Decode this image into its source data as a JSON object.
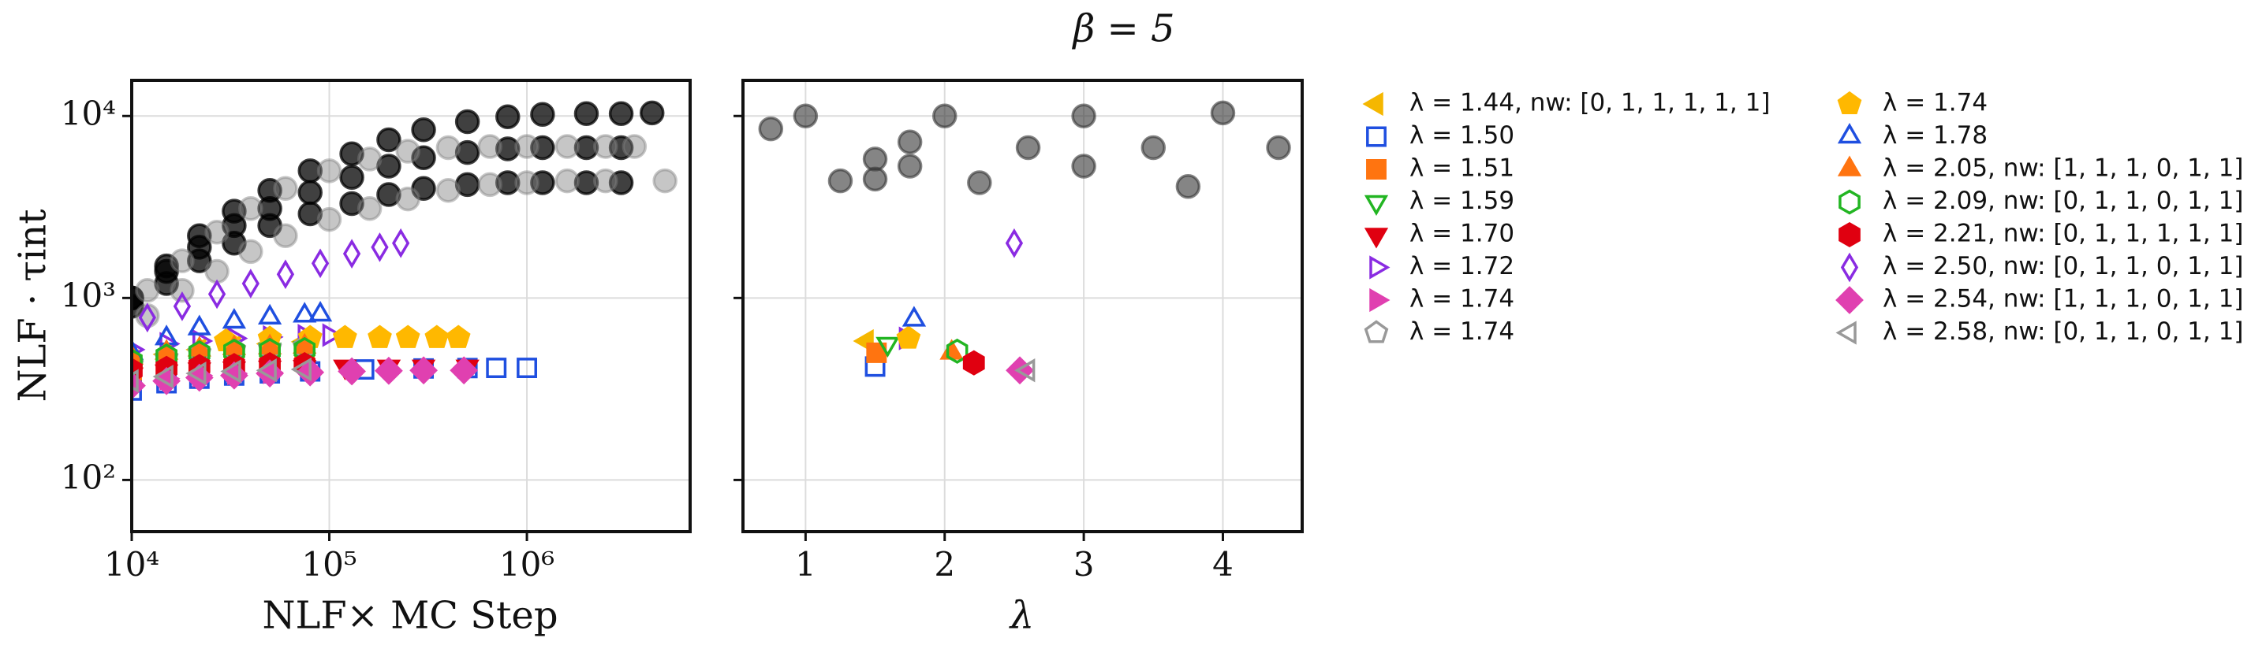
{
  "chart_data": [
    {
      "type": "scatter",
      "y_label": "NLF · τint",
      "x_label": "NLF× MC Step",
      "xlog": true,
      "ylog": true,
      "grid": true,
      "xlim": [
        10000,
        6700000
      ],
      "ylim": [
        52,
        15700
      ],
      "xticks": [
        {
          "value": 10000,
          "label": "10⁴"
        },
        {
          "value": 100000,
          "label": "10⁵"
        },
        {
          "value": 1000000,
          "label": "10⁶"
        }
      ],
      "yticks": [
        {
          "value": 100,
          "label": "10²"
        },
        {
          "value": 1000,
          "label": "10³"
        },
        {
          "value": 10000,
          "label": "10⁴"
        }
      ],
      "legend": "outside right",
      "legend_columns": 2,
      "series": [
        {
          "color": "#000000",
          "alpha": 0.75,
          "marker": "circle",
          "fill": true,
          "x": [
            10000,
            15000,
            22000,
            33000,
            50000,
            80000,
            130000,
            200000,
            300000,
            500000,
            800000,
            1200000,
            2000000,
            3000000,
            4300000
          ],
          "values": [
            1000,
            1500,
            2200,
            3000,
            3900,
            5000,
            6200,
            7400,
            8400,
            9300,
            9900,
            10200,
            10300,
            10300,
            10400
          ]
        },
        {
          "color": "#000000",
          "alpha": 0.75,
          "marker": "circle",
          "fill": true,
          "x": [
            10000,
            15000,
            22000,
            33000,
            50000,
            80000,
            130000,
            200000,
            300000,
            500000,
            800000,
            1200000,
            2000000,
            3000000
          ],
          "values": [
            1000,
            1400,
            1900,
            2500,
            3100,
            3800,
            4600,
            5300,
            5900,
            6300,
            6600,
            6700,
            6700,
            6700
          ]
        },
        {
          "color": "#000000",
          "alpha": 0.75,
          "marker": "circle",
          "fill": true,
          "x": [
            10000,
            15000,
            22000,
            33000,
            50000,
            80000,
            130000,
            200000,
            300000,
            500000,
            800000,
            1200000,
            2000000,
            3000000
          ],
          "values": [
            900,
            1200,
            1600,
            2000,
            2500,
            2900,
            3300,
            3700,
            4000,
            4200,
            4300,
            4300,
            4300,
            4300
          ]
        },
        {
          "color": "#808080",
          "alpha": 0.45,
          "marker": "circle",
          "fill": true,
          "x": [
            12000,
            18000,
            27000,
            40000,
            60000,
            100000,
            160000,
            250000,
            400000,
            650000,
            1000000,
            1600000,
            2500000,
            3500000
          ],
          "values": [
            1100,
            1600,
            2300,
            3100,
            4000,
            5000,
            5800,
            6400,
            6700,
            6800,
            6800,
            6800,
            6800,
            6800
          ]
        },
        {
          "color": "#808080",
          "alpha": 0.45,
          "marker": "circle",
          "fill": true,
          "x": [
            12000,
            18000,
            27000,
            40000,
            60000,
            100000,
            160000,
            250000,
            400000,
            650000,
            1000000,
            1600000,
            2500000,
            5000000
          ],
          "values": [
            800,
            1100,
            1400,
            1800,
            2200,
            2700,
            3100,
            3500,
            3900,
            4200,
            4300,
            4400,
            4400,
            4400
          ]
        },
        {
          "name": "λ = 1.44, nw: [0, 1, 1, 1, 1, 1]",
          "color": "#f5b700",
          "marker": "tri_left",
          "fill": true,
          "x": [
            10000,
            15000,
            22000,
            33000,
            50000,
            75000
          ],
          "values": [
            450,
            490,
            520,
            540,
            560,
            575
          ]
        },
        {
          "name": "λ = 1.50",
          "color": "#1f4fe0",
          "marker": "square",
          "fill": false,
          "x": [
            10000,
            15000,
            22000,
            33000,
            50000,
            80000,
            150000,
            300000,
            500000,
            700000,
            1000000
          ],
          "values": [
            310,
            340,
            360,
            375,
            385,
            395,
            405,
            410,
            412,
            413,
            413
          ]
        },
        {
          "name": "λ = 1.51",
          "color": "#ff7410",
          "marker": "square",
          "fill": true,
          "x": [
            10000,
            15000,
            22000,
            33000,
            50000,
            75000
          ],
          "values": [
            400,
            430,
            460,
            480,
            495,
            500
          ]
        },
        {
          "name": "λ = 1.59",
          "color": "#22b522",
          "marker": "tri_down",
          "fill": false,
          "x": [
            10000,
            15000,
            22000,
            33000,
            50000,
            75000
          ],
          "values": [
            420,
            450,
            480,
            500,
            520,
            530
          ]
        },
        {
          "name": "λ = 1.70",
          "color": "#e00010",
          "marker": "tri_down",
          "fill": true,
          "x": [
            10000,
            15000,
            22000,
            33000,
            50000,
            75000,
            120000,
            200000,
            300000,
            500000
          ],
          "values": [
            380,
            395,
            405,
            410,
            415,
            418,
            420,
            420,
            420,
            420
          ]
        },
        {
          "name": "λ = 1.72",
          "color": "#8a2be2",
          "marker": "tri_right",
          "fill": false,
          "x": [
            10000,
            15000,
            22000,
            33000,
            50000,
            75000,
            100000
          ],
          "values": [
            520,
            560,
            580,
            600,
            610,
            620,
            625
          ]
        },
        {
          "name": "λ = 1.74",
          "color": "#e040b0",
          "marker": "tri_right",
          "fill": true,
          "x": [
            10000,
            15000,
            22000,
            33000,
            50000
          ],
          "values": [
            330,
            360,
            375,
            385,
            390
          ]
        },
        {
          "name": "λ = 1.74",
          "color": "#999999",
          "marker": "pentagon",
          "fill": false,
          "x": [
            10000,
            15000,
            22000,
            33000,
            50000,
            75000
          ],
          "values": [
            430,
            470,
            500,
            520,
            530,
            540
          ]
        },
        {
          "name": "λ = 1.74",
          "color": "#ffb800",
          "marker": "pentagon",
          "fill": true,
          "x": [
            30000,
            50000,
            80000,
            120000,
            180000,
            250000,
            350000,
            450000
          ],
          "values": [
            580,
            600,
            605,
            605,
            605,
            605,
            605,
            605
          ]
        },
        {
          "name": "λ = 1.78",
          "color": "#1f4fe0",
          "marker": "tri_up",
          "fill": false,
          "x": [
            10000,
            15000,
            22000,
            33000,
            50000,
            75000,
            90000
          ],
          "values": [
            500,
            600,
            680,
            740,
            780,
            800,
            810
          ]
        },
        {
          "name": "λ = 2.05, nw: [1, 1, 1, 0, 1, 1]",
          "color": "#ff7410",
          "marker": "tri_up",
          "fill": true,
          "x": [
            10000,
            15000,
            22000,
            33000,
            50000,
            75000
          ],
          "values": [
            470,
            500,
            520,
            530,
            535,
            540
          ]
        },
        {
          "name": "λ = 2.09, nw: [0, 1, 1, 0, 1, 1]",
          "color": "#22b522",
          "marker": "hexagon",
          "fill": false,
          "x": [
            10000,
            15000,
            22000,
            33000,
            50000,
            75000
          ],
          "values": [
            450,
            480,
            500,
            510,
            515,
            520
          ]
        },
        {
          "name": "λ = 2.21, nw: [0, 1, 1, 1, 1, 1]",
          "color": "#e00010",
          "marker": "hexagon",
          "fill": true,
          "x": [
            10000,
            15000,
            22000,
            33000,
            50000,
            75000
          ],
          "values": [
            400,
            410,
            420,
            425,
            430,
            430
          ]
        },
        {
          "name": "λ = 2.50, nw: [0, 1, 1, 0, 1, 1]",
          "color": "#8a2be2",
          "marker": "thin_diamond",
          "fill": false,
          "x": [
            12000,
            18000,
            27000,
            40000,
            60000,
            90000,
            130000,
            180000,
            230000
          ],
          "values": [
            780,
            900,
            1050,
            1200,
            1350,
            1550,
            1750,
            1900,
            2000
          ]
        },
        {
          "name": "λ = 2.54, nw: [1, 1, 1, 0, 1, 1]",
          "color": "#e040b0",
          "marker": "diamond",
          "fill": true,
          "x": [
            10000,
            15000,
            22000,
            33000,
            50000,
            80000,
            130000,
            200000,
            300000,
            480000
          ],
          "values": [
            330,
            350,
            365,
            375,
            385,
            390,
            395,
            398,
            400,
            400
          ]
        },
        {
          "name": "λ = 2.58, nw: [0, 1, 1, 0, 1, 1]",
          "color": "#999999",
          "marker": "tri_left",
          "fill": false,
          "x": [
            10000,
            15000,
            22000,
            33000,
            50000,
            75000
          ],
          "values": [
            350,
            370,
            385,
            395,
            400,
            405
          ]
        }
      ]
    },
    {
      "type": "scatter",
      "title": "β = 5",
      "x_label": "λ",
      "xlog": false,
      "ylog": true,
      "grid": true,
      "ytick_labels": false,
      "xlim": [
        0.55,
        4.57
      ],
      "ylim": [
        52,
        15700
      ],
      "xticks": [
        1,
        2,
        3,
        4
      ],
      "yticks": [
        100,
        1000,
        10000
      ],
      "series": [
        {
          "color": "#333333",
          "alpha": 0.6,
          "marker": "circle",
          "fill": true,
          "x": [
            0.75,
            1,
            1.25,
            1.5,
            1.5,
            1.75,
            1.75,
            2,
            2.25,
            2.6,
            3,
            3,
            3.5,
            3.75,
            4,
            4.4
          ],
          "values": [
            8500,
            10000,
            4400,
            5800,
            4500,
            7200,
            5300,
            10000,
            4300,
            6700,
            10000,
            5300,
            6700,
            4100,
            10400,
            6700
          ]
        },
        {
          "color": "#f5b700",
          "marker": "tri_left",
          "fill": true,
          "x": [
            1.44
          ],
          "values": [
            580
          ]
        },
        {
          "color": "#1f4fe0",
          "marker": "square",
          "fill": false,
          "x": [
            1.5
          ],
          "values": [
            420
          ]
        },
        {
          "color": "#ff7410",
          "marker": "square",
          "fill": true,
          "x": [
            1.51
          ],
          "values": [
            500
          ]
        },
        {
          "color": "#22b522",
          "marker": "tri_down",
          "fill": false,
          "x": [
            1.59
          ],
          "values": [
            560
          ]
        },
        {
          "color": "#8a2be2",
          "marker": "tri_right",
          "fill": false,
          "x": [
            1.72
          ],
          "values": [
            600
          ]
        },
        {
          "color": "#ffb800",
          "marker": "pentagon",
          "fill": true,
          "x": [
            1.74
          ],
          "values": [
            600
          ]
        },
        {
          "color": "#1f4fe0",
          "marker": "tri_up",
          "fill": false,
          "x": [
            1.78
          ],
          "values": [
            760
          ]
        },
        {
          "color": "#ff7410",
          "marker": "tri_up",
          "fill": true,
          "x": [
            2.05
          ],
          "values": [
            500
          ]
        },
        {
          "color": "#22b522",
          "marker": "hexagon",
          "fill": false,
          "x": [
            2.09
          ],
          "values": [
            510
          ]
        },
        {
          "color": "#e00010",
          "marker": "hexagon",
          "fill": true,
          "x": [
            2.21
          ],
          "values": [
            440
          ]
        },
        {
          "color": "#8a2be2",
          "marker": "thin_diamond",
          "fill": false,
          "x": [
            2.5
          ],
          "values": [
            2000
          ]
        },
        {
          "color": "#e040b0",
          "marker": "diamond",
          "fill": true,
          "x": [
            2.54
          ],
          "values": [
            400
          ]
        },
        {
          "color": "#999999",
          "marker": "tri_left",
          "fill": false,
          "x": [
            2.6
          ],
          "values": [
            400
          ]
        }
      ]
    }
  ]
}
